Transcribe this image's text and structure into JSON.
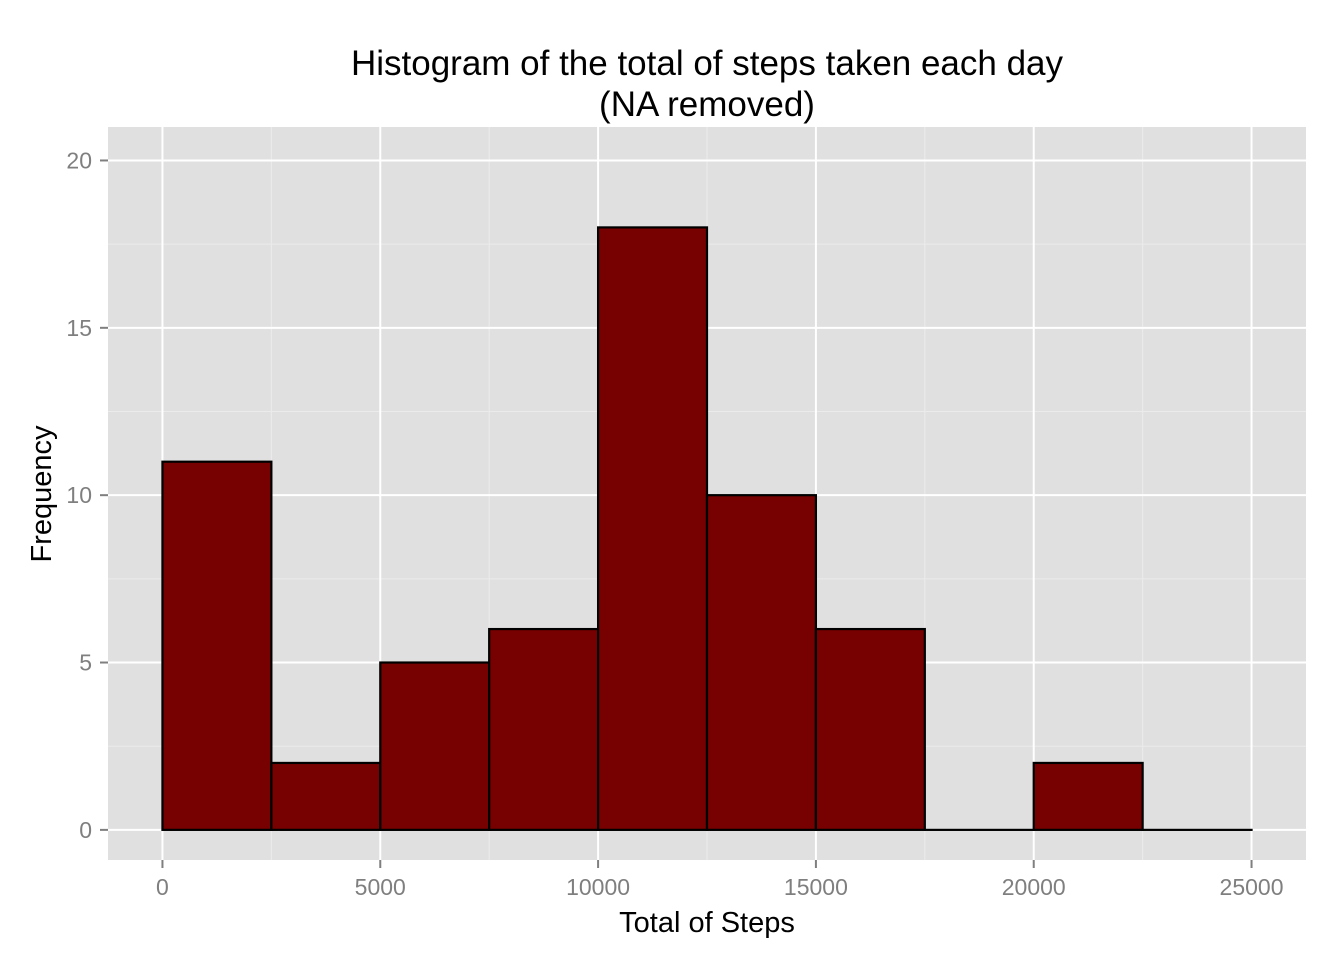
{
  "chart_data": {
    "type": "bar",
    "subtype": "histogram",
    "title": "Histogram of the total of steps taken each day",
    "subtitle": "(NA removed)",
    "xlabel": "Total of Steps",
    "ylabel": "Frequency",
    "bin_width": 2500,
    "bins": [
      {
        "start": 0,
        "end": 2500,
        "count": 11
      },
      {
        "start": 2500,
        "end": 5000,
        "count": 2
      },
      {
        "start": 5000,
        "end": 7500,
        "count": 5
      },
      {
        "start": 7500,
        "end": 10000,
        "count": 6
      },
      {
        "start": 10000,
        "end": 12500,
        "count": 18
      },
      {
        "start": 12500,
        "end": 15000,
        "count": 10
      },
      {
        "start": 15000,
        "end": 17500,
        "count": 6
      },
      {
        "start": 17500,
        "end": 20000,
        "count": 0
      },
      {
        "start": 20000,
        "end": 22500,
        "count": 2
      },
      {
        "start": 22500,
        "end": 25000,
        "count": 0
      }
    ],
    "xlim": [
      -1250,
      26250
    ],
    "ylim": [
      -0.9,
      21.0
    ],
    "x_ticks": [
      0,
      5000,
      10000,
      15000,
      20000,
      25000
    ],
    "x_tick_labels": [
      "0",
      "5000",
      "10000",
      "15000",
      "20000",
      "25000"
    ],
    "y_ticks": [
      0,
      5,
      10,
      15,
      20
    ],
    "y_tick_labels": [
      "0",
      "5",
      "10",
      "15",
      "20"
    ],
    "grid": true,
    "legend": false,
    "colors": {
      "bar_fill": "#770000",
      "bar_stroke": "#000000",
      "panel_background": "#e0e0e0",
      "grid_major": "#ffffff",
      "grid_minor": "#ebebeb",
      "tick_label": "#7f7f7f"
    }
  }
}
